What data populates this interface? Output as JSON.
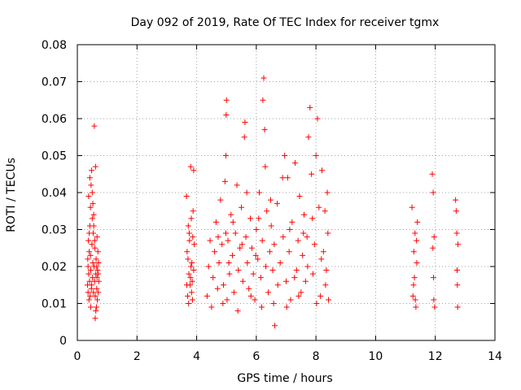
{
  "chart_data": {
    "type": "scatter",
    "title": "Day 092 of 2019, Rate Of TEC Index for receiver tgmx",
    "xlabel": "GPS time / hours",
    "ylabel": "ROTI / TECUs",
    "xlim": [
      0,
      14
    ],
    "ylim": [
      0,
      0.08
    ],
    "x_ticks": [
      0,
      2,
      4,
      6,
      8,
      10,
      12,
      14
    ],
    "y_ticks": [
      0,
      0.01,
      0.02,
      0.03,
      0.04,
      0.05,
      0.06,
      0.07,
      0.08
    ],
    "x_tick_labels": [
      "0",
      "2",
      "4",
      "6",
      "8",
      "10",
      "12",
      "14"
    ],
    "y_tick_labels": [
      "0",
      "0.01",
      "0.02",
      "0.03",
      "0.04",
      "0.05",
      "0.06",
      "0.07",
      "0.08"
    ],
    "grid": true,
    "marker": "+",
    "color": "#ff0000",
    "series": [
      {
        "name": "ROTI",
        "points": [
          [
            0.34,
            0.015
          ],
          [
            0.35,
            0.022
          ],
          [
            0.36,
            0.013
          ],
          [
            0.37,
            0.027
          ],
          [
            0.38,
            0.018
          ],
          [
            0.39,
            0.011
          ],
          [
            0.4,
            0.024
          ],
          [
            0.41,
            0.016
          ],
          [
            0.42,
            0.031
          ],
          [
            0.43,
            0.012
          ],
          [
            0.44,
            0.036
          ],
          [
            0.45,
            0.019
          ],
          [
            0.46,
            0.042
          ],
          [
            0.47,
            0.014
          ],
          [
            0.48,
            0.046
          ],
          [
            0.49,
            0.026
          ],
          [
            0.5,
            0.033
          ],
          [
            0.51,
            0.017
          ],
          [
            0.52,
            0.021
          ],
          [
            0.53,
            0.029
          ],
          [
            0.54,
            0.013
          ],
          [
            0.55,
            0.034
          ],
          [
            0.56,
            0.02
          ],
          [
            0.57,
            0.058
          ],
          [
            0.58,
            0.016
          ],
          [
            0.59,
            0.025
          ],
          [
            0.6,
            0.012
          ],
          [
            0.61,
            0.047
          ],
          [
            0.62,
            0.018
          ],
          [
            0.63,
            0.022
          ],
          [
            0.64,
            0.009
          ],
          [
            0.65,
            0.014
          ],
          [
            0.66,
            0.028
          ],
          [
            0.67,
            0.011
          ],
          [
            0.68,
            0.019
          ],
          [
            0.69,
            0.024
          ],
          [
            0.7,
            0.013
          ],
          [
            0.71,
            0.021
          ],
          [
            0.72,
            0.016
          ],
          [
            0.38,
            0.039
          ],
          [
            0.42,
            0.044
          ],
          [
            0.45,
            0.009
          ],
          [
            0.5,
            0.04
          ],
          [
            0.55,
            0.031
          ],
          [
            0.6,
            0.006
          ],
          [
            0.65,
            0.02
          ],
          [
            0.7,
            0.018
          ],
          [
            0.36,
            0.02
          ],
          [
            0.4,
            0.029
          ],
          [
            0.44,
            0.023
          ],
          [
            0.48,
            0.015
          ],
          [
            0.52,
            0.037
          ],
          [
            0.58,
            0.027
          ],
          [
            0.62,
            0.008
          ],
          [
            0.66,
            0.017
          ],
          [
            3.66,
            0.039
          ],
          [
            3.68,
            0.024
          ],
          [
            3.7,
            0.012
          ],
          [
            3.72,
            0.031
          ],
          [
            3.74,
            0.018
          ],
          [
            3.76,
            0.027
          ],
          [
            3.78,
            0.015
          ],
          [
            3.8,
            0.047
          ],
          [
            3.82,
            0.033
          ],
          [
            3.84,
            0.021
          ],
          [
            3.86,
            0.011
          ],
          [
            3.88,
            0.035
          ],
          [
            3.9,
            0.019
          ],
          [
            3.92,
            0.026
          ],
          [
            3.67,
            0.015
          ],
          [
            3.71,
            0.022
          ],
          [
            3.75,
            0.029
          ],
          [
            3.79,
            0.017
          ],
          [
            3.83,
            0.013
          ],
          [
            3.87,
            0.028
          ],
          [
            3.9,
            0.046
          ],
          [
            3.73,
            0.01
          ],
          [
            3.81,
            0.02
          ],
          [
            3.85,
            0.016
          ],
          [
            4.35,
            0.012
          ],
          [
            4.45,
            0.027
          ],
          [
            4.55,
            0.017
          ],
          [
            4.6,
            0.024
          ],
          [
            4.65,
            0.032
          ],
          [
            4.7,
            0.014
          ],
          [
            4.75,
            0.021
          ],
          [
            4.8,
            0.038
          ],
          [
            4.85,
            0.026
          ],
          [
            4.9,
            0.015
          ],
          [
            4.95,
            0.043
          ],
          [
            4.98,
            0.029
          ],
          [
            4.98,
            0.05
          ],
          [
            4.99,
            0.061
          ],
          [
            5.0,
            0.065
          ],
          [
            5.02,
            0.011
          ],
          [
            5.05,
            0.027
          ],
          [
            5.1,
            0.018
          ],
          [
            5.15,
            0.034
          ],
          [
            5.2,
            0.023
          ],
          [
            5.25,
            0.013
          ],
          [
            5.3,
            0.029
          ],
          [
            5.35,
            0.042
          ],
          [
            5.4,
            0.019
          ],
          [
            5.45,
            0.025
          ],
          [
            5.5,
            0.036
          ],
          [
            5.55,
            0.016
          ],
          [
            5.6,
            0.055
          ],
          [
            5.62,
            0.059
          ],
          [
            5.65,
            0.028
          ],
          [
            5.7,
            0.021
          ],
          [
            5.75,
            0.014
          ],
          [
            5.8,
            0.033
          ],
          [
            5.85,
            0.025
          ],
          [
            5.9,
            0.018
          ],
          [
            5.95,
            0.011
          ],
          [
            6.0,
            0.03
          ],
          [
            6.05,
            0.022
          ],
          [
            6.1,
            0.04
          ],
          [
            6.15,
            0.017
          ],
          [
            6.2,
            0.027
          ],
          [
            6.22,
            0.065
          ],
          [
            6.25,
            0.071
          ],
          [
            6.28,
            0.057
          ],
          [
            6.3,
            0.047
          ],
          [
            6.35,
            0.035
          ],
          [
            6.4,
            0.013
          ],
          [
            6.45,
            0.024
          ],
          [
            6.5,
            0.031
          ],
          [
            6.55,
            0.019
          ],
          [
            6.6,
            0.026
          ],
          [
            6.62,
            0.004
          ],
          [
            6.7,
            0.037
          ],
          [
            6.8,
            0.021
          ],
          [
            6.9,
            0.028
          ],
          [
            6.95,
            0.05
          ],
          [
            7.0,
            0.016
          ],
          [
            7.05,
            0.044
          ],
          [
            7.1,
            0.024
          ],
          [
            7.15,
            0.011
          ],
          [
            7.2,
            0.032
          ],
          [
            7.3,
            0.048
          ],
          [
            7.35,
            0.019
          ],
          [
            7.4,
            0.027
          ],
          [
            7.45,
            0.039
          ],
          [
            7.5,
            0.013
          ],
          [
            7.55,
            0.023
          ],
          [
            7.6,
            0.034
          ],
          [
            7.65,
            0.016
          ],
          [
            7.7,
            0.028
          ],
          [
            7.75,
            0.055
          ],
          [
            7.8,
            0.063
          ],
          [
            7.85,
            0.045
          ],
          [
            7.9,
            0.018
          ],
          [
            7.95,
            0.026
          ],
          [
            8.0,
            0.05
          ],
          [
            8.05,
            0.06
          ],
          [
            8.1,
            0.036
          ],
          [
            8.15,
            0.012
          ],
          [
            8.2,
            0.046
          ],
          [
            8.25,
            0.024
          ],
          [
            8.3,
            0.035
          ],
          [
            8.35,
            0.019
          ],
          [
            8.4,
            0.029
          ],
          [
            8.42,
            0.011
          ],
          [
            4.4,
            0.02
          ],
          [
            4.5,
            0.009
          ],
          [
            4.72,
            0.028
          ],
          [
            4.88,
            0.01
          ],
          [
            5.08,
            0.021
          ],
          [
            5.22,
            0.032
          ],
          [
            5.38,
            0.008
          ],
          [
            5.52,
            0.026
          ],
          [
            5.68,
            0.04
          ],
          [
            5.82,
            0.012
          ],
          [
            5.98,
            0.023
          ],
          [
            6.08,
            0.033
          ],
          [
            6.18,
            0.009
          ],
          [
            6.32,
            0.02
          ],
          [
            6.48,
            0.038
          ],
          [
            6.58,
            0.01
          ],
          [
            6.72,
            0.015
          ],
          [
            6.88,
            0.044
          ],
          [
            7.02,
            0.009
          ],
          [
            7.12,
            0.03
          ],
          [
            7.28,
            0.017
          ],
          [
            7.42,
            0.012
          ],
          [
            7.58,
            0.029
          ],
          [
            7.72,
            0.02
          ],
          [
            7.88,
            0.033
          ],
          [
            8.02,
            0.01
          ],
          [
            8.18,
            0.022
          ],
          [
            8.32,
            0.015
          ],
          [
            8.38,
            0.04
          ],
          [
            11.22,
            0.036
          ],
          [
            11.25,
            0.012
          ],
          [
            11.28,
            0.024
          ],
          [
            11.3,
            0.017
          ],
          [
            11.32,
            0.029
          ],
          [
            11.35,
            0.009
          ],
          [
            11.38,
            0.021
          ],
          [
            11.4,
            0.032
          ],
          [
            11.27,
            0.015
          ],
          [
            11.33,
            0.011
          ],
          [
            11.37,
            0.027
          ],
          [
            11.9,
            0.045
          ],
          [
            11.92,
            0.025
          ],
          [
            11.93,
            0.04
          ],
          [
            11.94,
            0.017
          ],
          [
            11.95,
            0.011
          ],
          [
            11.96,
            0.028
          ],
          [
            11.98,
            0.009
          ],
          [
            12.68,
            0.038
          ],
          [
            12.7,
            0.035
          ],
          [
            12.72,
            0.029
          ],
          [
            12.73,
            0.019
          ],
          [
            12.74,
            0.015
          ],
          [
            12.75,
            0.009
          ],
          [
            12.76,
            0.026
          ]
        ]
      }
    ]
  }
}
